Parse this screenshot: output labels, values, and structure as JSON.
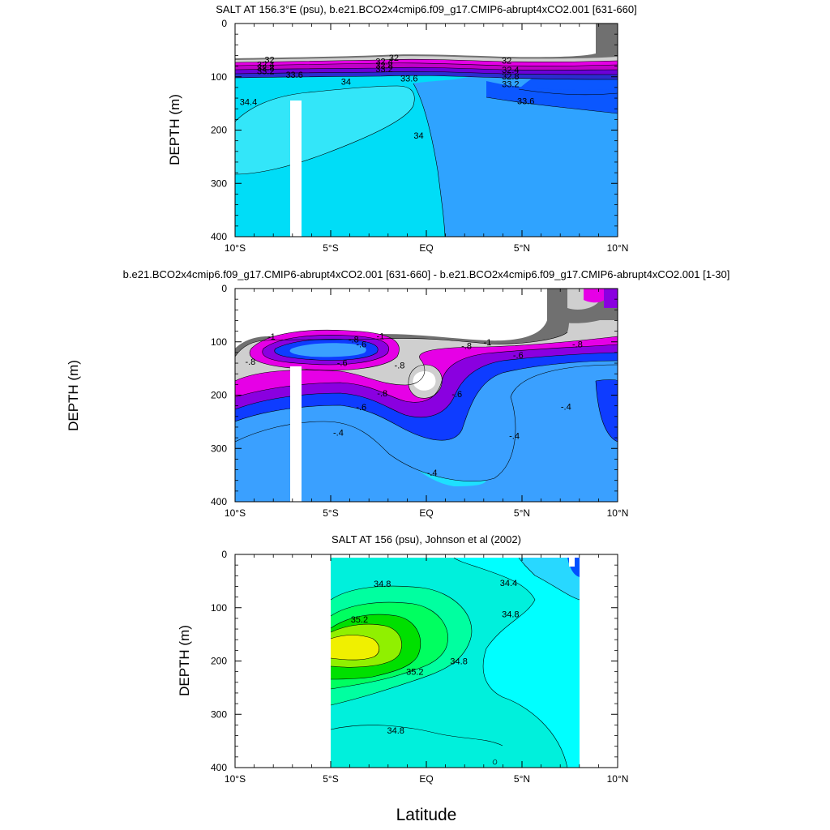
{
  "chart_data": [
    {
      "type": "contour",
      "title": "SALT AT 156.3°E (psu), b.e21.BCO2x4cmip6.f09_g17.CMIP6-abrupt4xCO2.001 [631-660]",
      "ylabel": "DEPTH (m)",
      "xlim": [
        -10,
        10
      ],
      "ylim": [
        0,
        400
      ],
      "y_reversed": true,
      "x_ticks": [
        -10,
        -5,
        0,
        5,
        10
      ],
      "x_tick_labels": [
        "10°S",
        "5°S",
        "EQ",
        "5°N",
        "10°N"
      ],
      "y_ticks": [
        0,
        100,
        200,
        300,
        400
      ],
      "y_tick_labels": [
        "0",
        "100",
        "200",
        "300",
        "400"
      ],
      "contour_labels": [
        {
          "text": "32",
          "x": -8.2,
          "y": 68
        },
        {
          "text": "32.4",
          "x": -8.4,
          "y": 77
        },
        {
          "text": "32.8",
          "x": -8.4,
          "y": 83
        },
        {
          "text": "33.2",
          "x": -8.4,
          "y": 89
        },
        {
          "text": "33.6",
          "x": -6.9,
          "y": 96
        },
        {
          "text": "34",
          "x": -4.2,
          "y": 109
        },
        {
          "text": "34.4",
          "x": -9.3,
          "y": 147
        },
        {
          "text": "32",
          "x": -1.7,
          "y": 64
        },
        {
          "text": "32.4",
          "x": -2.2,
          "y": 71
        },
        {
          "text": "32.8",
          "x": -2.2,
          "y": 78
        },
        {
          "text": "33.2",
          "x": -2.2,
          "y": 85
        },
        {
          "text": "33.6",
          "x": -0.9,
          "y": 103
        },
        {
          "text": "34",
          "x": -0.4,
          "y": 210
        },
        {
          "text": "32",
          "x": 4.2,
          "y": 69
        },
        {
          "text": "32.4",
          "x": 4.4,
          "y": 87
        },
        {
          "text": "32.8",
          "x": 4.4,
          "y": 99
        },
        {
          "text": "33.2",
          "x": 4.4,
          "y": 113
        },
        {
          "text": "33.6",
          "x": 5.2,
          "y": 145
        }
      ]
    },
    {
      "type": "contour",
      "title": "b.e21.BCO2x4cmip6.f09_g17.CMIP6-abrupt4xCO2.001 [631-660] - b.e21.BCO2x4cmip6.f09_g17.CMIP6-abrupt4xCO2.001 [1-30]",
      "ylabel": "DEPTH (m)",
      "xlim": [
        -10,
        10
      ],
      "ylim": [
        0,
        400
      ],
      "y_reversed": true,
      "x_ticks": [
        -10,
        -5,
        0,
        5,
        10
      ],
      "x_tick_labels": [
        "10°S",
        "5°S",
        "EQ",
        "5°N",
        "10°N"
      ],
      "y_ticks": [
        0,
        100,
        200,
        300,
        400
      ],
      "y_tick_labels": [
        "0",
        "100",
        "200",
        "300",
        "400"
      ],
      "contour_labels": [
        {
          "text": "-1",
          "x": -8.1,
          "y": 90
        },
        {
          "text": "-.8",
          "x": -9.2,
          "y": 137
        },
        {
          "text": "-.8",
          "x": -3.8,
          "y": 95
        },
        {
          "text": "-.6",
          "x": -3.4,
          "y": 104
        },
        {
          "text": "-1",
          "x": -2.4,
          "y": 89
        },
        {
          "text": "-.6",
          "x": -4.4,
          "y": 139
        },
        {
          "text": "-.8",
          "x": -1.4,
          "y": 144
        },
        {
          "text": "-.8",
          "x": -2.3,
          "y": 196
        },
        {
          "text": "-.6",
          "x": -3.4,
          "y": 222
        },
        {
          "text": "-.6",
          "x": 1.6,
          "y": 198
        },
        {
          "text": "-.8",
          "x": 2.1,
          "y": 107
        },
        {
          "text": "-1",
          "x": 3.2,
          "y": 100
        },
        {
          "text": "-.6",
          "x": 4.8,
          "y": 125
        },
        {
          "text": "-.8",
          "x": 7.9,
          "y": 104
        },
        {
          "text": "-.4",
          "x": 7.3,
          "y": 221
        },
        {
          "text": "-.4",
          "x": -4.6,
          "y": 270
        },
        {
          "text": "-.4",
          "x": 4.6,
          "y": 276
        },
        {
          "text": "-.4",
          "x": 0.3,
          "y": 345
        }
      ]
    },
    {
      "type": "contour",
      "title": "SALT AT 156 (psu), Johnson et al (2002)",
      "ylabel": "DEPTH (m)",
      "xlabel": "Latitude",
      "xlim": [
        -10,
        10
      ],
      "ylim": [
        0,
        400
      ],
      "y_reversed": true,
      "data_x_range": [
        -5,
        8
      ],
      "x_ticks": [
        -10,
        -5,
        0,
        5,
        10
      ],
      "x_tick_labels": [
        "10°S",
        "5°S",
        "EQ",
        "5°N",
        "10°N"
      ],
      "y_ticks": [
        0,
        100,
        200,
        300,
        400
      ],
      "y_tick_labels": [
        "0",
        "100",
        "200",
        "300",
        "400"
      ],
      "contour_labels": [
        {
          "text": "34.8",
          "x": -2.3,
          "y": 55
        },
        {
          "text": "34.4",
          "x": 4.3,
          "y": 53
        },
        {
          "text": "35.2",
          "x": -3.5,
          "y": 122
        },
        {
          "text": "34.8",
          "x": 4.4,
          "y": 112
        },
        {
          "text": "35.2",
          "x": -0.6,
          "y": 220
        },
        {
          "text": "34.8",
          "x": 1.7,
          "y": 200
        },
        {
          "text": "34.8",
          "x": -1.6,
          "y": 330
        }
      ]
    }
  ]
}
